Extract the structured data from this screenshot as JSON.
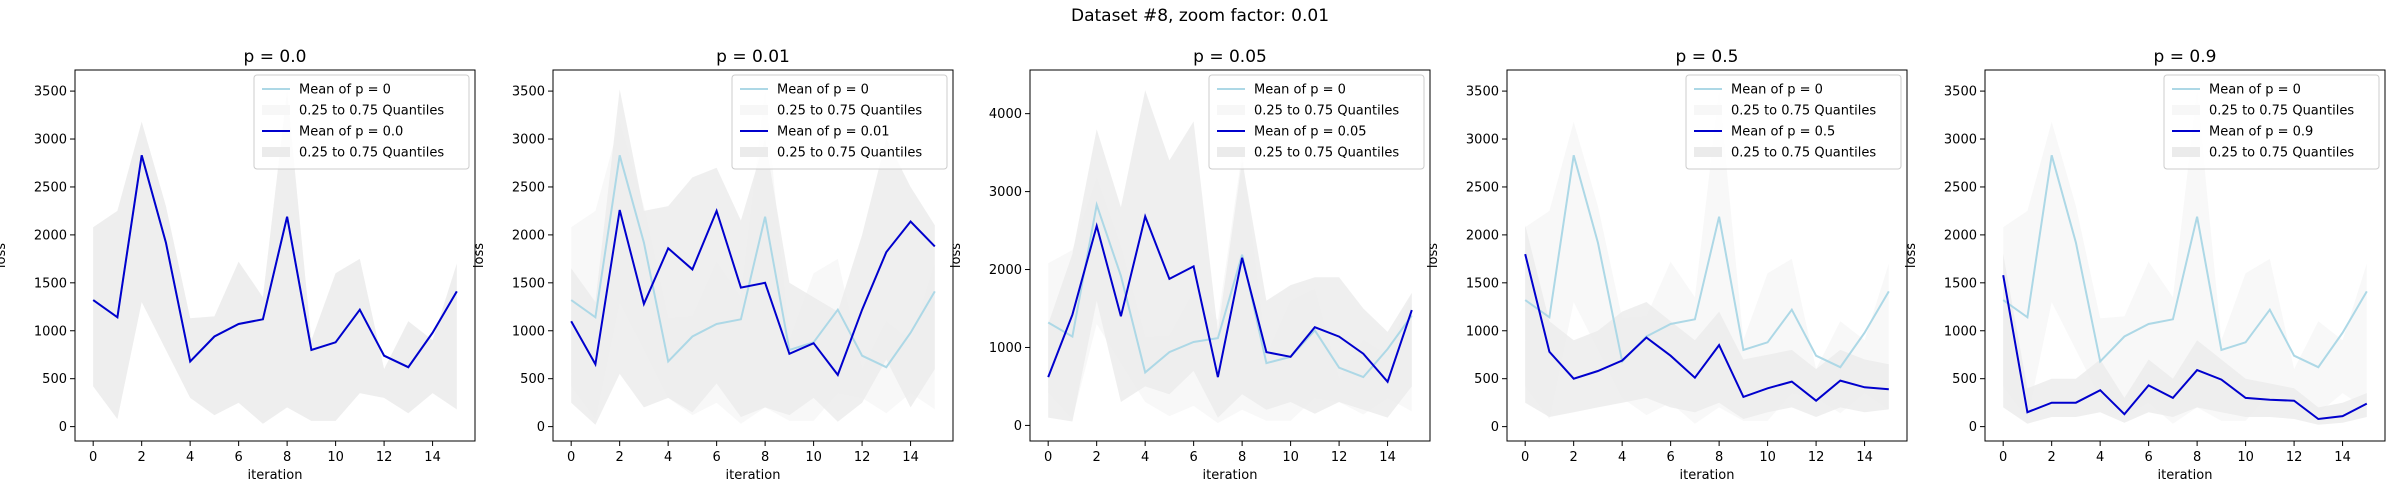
{
  "figure": {
    "suptitle": "Dataset #8, zoom factor: 0.01"
  },
  "colors": {
    "baseline_line": "#add8e6",
    "main_line": "#0000cd",
    "baseline_band": "#f7f7f7",
    "main_band": "#ebebeb"
  },
  "chart_data": [
    {
      "type": "line",
      "title": "p = 0.0",
      "xlabel": "iteration",
      "ylabel": "loss",
      "xlim": [
        -0.75,
        15.75
      ],
      "ylim": [
        -150,
        3720
      ],
      "xticks": [
        0,
        2,
        4,
        6,
        8,
        10,
        12,
        14
      ],
      "yticks": [
        0,
        500,
        1000,
        1500,
        2000,
        2500,
        3000,
        3500
      ],
      "legend_position": "upper right",
      "x": [
        0,
        1,
        2,
        3,
        4,
        5,
        6,
        7,
        8,
        9,
        10,
        11,
        12,
        13,
        14,
        15
      ],
      "series": [
        {
          "name": "Mean of p = 0",
          "role": "baseline",
          "values": [
            1320,
            1140,
            2830,
            1920,
            680,
            940,
            1070,
            1120,
            2190,
            800,
            880,
            1220,
            740,
            620,
            980,
            1410
          ]
        },
        {
          "name": "0.25 to 0.75 Quantiles",
          "role": "baseline_band",
          "low": [
            420,
            80,
            1300,
            800,
            300,
            120,
            250,
            30,
            200,
            60,
            60,
            350,
            300,
            140,
            350,
            180
          ],
          "high": [
            2080,
            2250,
            3180,
            2300,
            1130,
            1150,
            1720,
            1350,
            3500,
            900,
            1600,
            1750,
            600,
            1100,
            900,
            1700
          ]
        },
        {
          "name": "Mean of p = 0.0",
          "role": "main",
          "values": [
            1320,
            1140,
            2830,
            1920,
            680,
            940,
            1070,
            1120,
            2190,
            800,
            880,
            1220,
            740,
            620,
            980,
            1410
          ]
        },
        {
          "name": "0.25 to 0.75 Quantiles",
          "role": "main_band",
          "low": [
            420,
            80,
            1300,
            800,
            300,
            120,
            250,
            30,
            200,
            60,
            60,
            350,
            300,
            140,
            350,
            180
          ],
          "high": [
            2080,
            2250,
            3180,
            2300,
            1130,
            1150,
            1720,
            1350,
            3500,
            900,
            1600,
            1750,
            600,
            1100,
            900,
            1700
          ]
        }
      ]
    },
    {
      "type": "line",
      "title": "p = 0.01",
      "xlabel": "iteration",
      "ylabel": "loss",
      "xlim": [
        -0.75,
        15.75
      ],
      "ylim": [
        -150,
        3720
      ],
      "xticks": [
        0,
        2,
        4,
        6,
        8,
        10,
        12,
        14
      ],
      "yticks": [
        0,
        500,
        1000,
        1500,
        2000,
        2500,
        3000,
        3500
      ],
      "legend_position": "upper right",
      "x": [
        0,
        1,
        2,
        3,
        4,
        5,
        6,
        7,
        8,
        9,
        10,
        11,
        12,
        13,
        14,
        15
      ],
      "series": [
        {
          "name": "Mean of p = 0",
          "role": "baseline",
          "values": [
            1320,
            1140,
            2830,
            1920,
            680,
            940,
            1070,
            1120,
            2190,
            800,
            880,
            1220,
            740,
            620,
            980,
            1410
          ]
        },
        {
          "name": "0.25 to 0.75 Quantiles",
          "role": "baseline_band",
          "low": [
            420,
            80,
            1300,
            800,
            300,
            120,
            250,
            30,
            200,
            60,
            60,
            350,
            300,
            140,
            350,
            180
          ],
          "high": [
            2080,
            2250,
            3180,
            2300,
            1130,
            1150,
            1720,
            1350,
            3500,
            900,
            1600,
            1750,
            600,
            1100,
            900,
            1700
          ]
        },
        {
          "name": "Mean of p = 0.01",
          "role": "main",
          "values": [
            1100,
            650,
            2260,
            1280,
            1860,
            1640,
            2250,
            1450,
            1500,
            760,
            870,
            540,
            1220,
            1820,
            2140,
            1880
          ]
        },
        {
          "name": "0.25 to 0.75 Quantiles",
          "role": "main_band",
          "low": [
            250,
            20,
            550,
            200,
            300,
            150,
            450,
            100,
            200,
            120,
            300,
            50,
            250,
            700,
            200,
            600
          ],
          "high": [
            1650,
            1300,
            3520,
            2250,
            2300,
            2600,
            2700,
            2150,
            3000,
            1500,
            1350,
            1200,
            2000,
            3000,
            2500,
            2100
          ]
        }
      ]
    },
    {
      "type": "line",
      "title": "p = 0.05",
      "xlabel": "iteration",
      "ylabel": "loss",
      "xlim": [
        -0.75,
        15.75
      ],
      "ylim": [
        -200,
        4560
      ],
      "xticks": [
        0,
        2,
        4,
        6,
        8,
        10,
        12,
        14
      ],
      "yticks": [
        0,
        1000,
        2000,
        3000,
        4000
      ],
      "legend_position": "upper right",
      "x": [
        0,
        1,
        2,
        3,
        4,
        5,
        6,
        7,
        8,
        9,
        10,
        11,
        12,
        13,
        14,
        15
      ],
      "series": [
        {
          "name": "Mean of p = 0",
          "role": "baseline",
          "values": [
            1320,
            1140,
            2830,
            1920,
            680,
            940,
            1070,
            1120,
            2190,
            800,
            880,
            1220,
            740,
            620,
            980,
            1410
          ]
        },
        {
          "name": "0.25 to 0.75 Quantiles",
          "role": "baseline_band",
          "low": [
            420,
            80,
            1300,
            800,
            300,
            120,
            250,
            30,
            200,
            60,
            60,
            350,
            300,
            140,
            350,
            180
          ],
          "high": [
            2080,
            2250,
            3180,
            2300,
            1130,
            1150,
            1720,
            1350,
            3500,
            900,
            1600,
            1750,
            600,
            1100,
            900,
            1700
          ]
        },
        {
          "name": "Mean of p = 0.05",
          "role": "main",
          "values": [
            620,
            1420,
            2560,
            1400,
            2680,
            1880,
            2040,
            620,
            2150,
            940,
            880,
            1260,
            1140,
            920,
            560,
            1480
          ]
        },
        {
          "name": "0.25 to 0.75 Quantiles",
          "role": "main_band",
          "low": [
            100,
            50,
            1600,
            300,
            500,
            400,
            700,
            100,
            400,
            200,
            300,
            150,
            300,
            200,
            100,
            500
          ],
          "high": [
            1300,
            2200,
            3800,
            2800,
            4300,
            3400,
            3900,
            1200,
            3400,
            1600,
            1800,
            1900,
            1900,
            1500,
            1200,
            1700
          ]
        }
      ]
    },
    {
      "type": "line",
      "title": "p = 0.5",
      "xlabel": "iteration",
      "ylabel": "loss",
      "xlim": [
        -0.75,
        15.75
      ],
      "ylim": [
        -150,
        3720
      ],
      "xticks": [
        0,
        2,
        4,
        6,
        8,
        10,
        12,
        14
      ],
      "yticks": [
        0,
        500,
        1000,
        1500,
        2000,
        2500,
        3000,
        3500
      ],
      "legend_position": "upper right",
      "x": [
        0,
        1,
        2,
        3,
        4,
        5,
        6,
        7,
        8,
        9,
        10,
        11,
        12,
        13,
        14,
        15
      ],
      "series": [
        {
          "name": "Mean of p = 0",
          "role": "baseline",
          "values": [
            1320,
            1140,
            2830,
            1920,
            680,
            940,
            1070,
            1120,
            2190,
            800,
            880,
            1220,
            740,
            620,
            980,
            1410
          ]
        },
        {
          "name": "0.25 to 0.75 Quantiles",
          "role": "baseline_band",
          "low": [
            420,
            80,
            1300,
            800,
            300,
            120,
            250,
            30,
            200,
            60,
            60,
            350,
            300,
            140,
            350,
            180
          ],
          "high": [
            2080,
            2250,
            3180,
            2300,
            1130,
            1150,
            1720,
            1350,
            3500,
            900,
            1600,
            1750,
            600,
            1100,
            900,
            1700
          ]
        },
        {
          "name": "Mean of p = 0.5",
          "role": "main",
          "values": [
            1800,
            780,
            500,
            580,
            690,
            930,
            740,
            510,
            850,
            310,
            400,
            470,
            270,
            480,
            410,
            390
          ]
        },
        {
          "name": "0.25 to 0.75 Quantiles",
          "role": "main_band",
          "low": [
            250,
            100,
            150,
            200,
            250,
            300,
            200,
            150,
            250,
            80,
            150,
            200,
            100,
            200,
            150,
            180
          ],
          "high": [
            2100,
            1100,
            900,
            1000,
            1200,
            1300,
            1100,
            900,
            1200,
            700,
            750,
            800,
            600,
            800,
            700,
            650
          ]
        }
      ]
    },
    {
      "type": "line",
      "title": "p = 0.9",
      "xlabel": "iteration",
      "ylabel": "loss",
      "xlim": [
        -0.75,
        15.75
      ],
      "ylim": [
        -150,
        3720
      ],
      "xticks": [
        0,
        2,
        4,
        6,
        8,
        10,
        12,
        14
      ],
      "yticks": [
        0,
        500,
        1000,
        1500,
        2000,
        2500,
        3000,
        3500
      ],
      "legend_position": "upper right",
      "x": [
        0,
        1,
        2,
        3,
        4,
        5,
        6,
        7,
        8,
        9,
        10,
        11,
        12,
        13,
        14,
        15
      ],
      "series": [
        {
          "name": "Mean of p = 0",
          "role": "baseline",
          "values": [
            1320,
            1140,
            2830,
            1920,
            680,
            940,
            1070,
            1120,
            2190,
            800,
            880,
            1220,
            740,
            620,
            980,
            1410
          ]
        },
        {
          "name": "0.25 to 0.75 Quantiles",
          "role": "baseline_band",
          "low": [
            420,
            80,
            1300,
            800,
            300,
            120,
            250,
            30,
            200,
            60,
            60,
            350,
            300,
            140,
            350,
            180
          ],
          "high": [
            2080,
            2250,
            3180,
            2300,
            1130,
            1150,
            1720,
            1350,
            3500,
            900,
            1600,
            1750,
            600,
            1100,
            900,
            1700
          ]
        },
        {
          "name": "Mean of p = 0.9",
          "role": "main",
          "values": [
            1580,
            150,
            250,
            250,
            380,
            130,
            430,
            300,
            590,
            490,
            300,
            280,
            270,
            80,
            110,
            240
          ]
        },
        {
          "name": "0.25 to 0.75 Quantiles",
          "role": "main_band",
          "low": [
            200,
            30,
            100,
            100,
            150,
            40,
            150,
            100,
            200,
            150,
            100,
            100,
            80,
            20,
            40,
            100
          ],
          "high": [
            1800,
            400,
            500,
            500,
            700,
            300,
            700,
            500,
            900,
            700,
            500,
            450,
            400,
            200,
            250,
            350
          ]
        }
      ]
    }
  ]
}
